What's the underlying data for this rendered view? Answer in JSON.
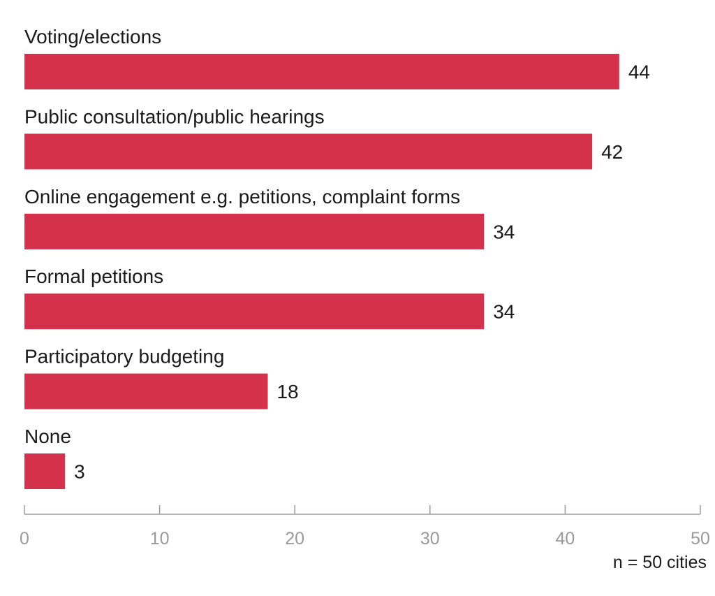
{
  "chart_data": {
    "type": "bar",
    "orientation": "horizontal",
    "categories": [
      "Voting/elections",
      "Public consultation/public hearings",
      "Online engagement e.g. petitions, complaint forms",
      "Formal petitions",
      "Participatory budgeting",
      "None"
    ],
    "values": [
      44,
      42,
      34,
      34,
      18,
      3
    ],
    "data_labels": [
      "44",
      "42",
      "34",
      "34",
      "18",
      "3"
    ],
    "xlim": [
      0,
      50
    ],
    "x_ticks": [
      0,
      10,
      20,
      30,
      40,
      50
    ],
    "x_tick_labels": [
      "0",
      "10",
      "20",
      "30",
      "40",
      "50"
    ],
    "title": "",
    "xlabel": "",
    "ylabel": "",
    "annotation": "n = 50 cities",
    "grid": false,
    "legend": "none",
    "colors": {
      "bar": "#d4314c",
      "axis": "#9a9a9a",
      "tick_text": "#9a9a9a",
      "text": "#1a1a1a"
    }
  }
}
